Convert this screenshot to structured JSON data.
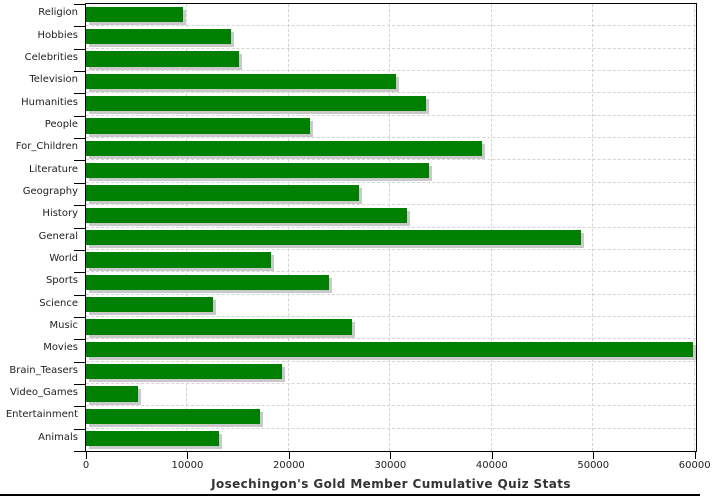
{
  "chart_data": {
    "type": "bar",
    "orientation": "horizontal",
    "title": "Josechingon's Gold Member Cumulative Quiz Stats",
    "categories": [
      "Religion",
      "Hobbies",
      "Celebrities",
      "Television",
      "Humanities",
      "People",
      "For_Children",
      "Literature",
      "Geography",
      "History",
      "General",
      "World",
      "Sports",
      "Science",
      "Music",
      "Movies",
      "Brain_Teasers",
      "Video_Games",
      "Entertainment",
      "Animals"
    ],
    "values": [
      9600,
      14300,
      15100,
      30600,
      33500,
      22100,
      39000,
      33800,
      26900,
      31600,
      48800,
      18200,
      24000,
      12500,
      26200,
      59800,
      19300,
      5100,
      17200,
      13100
    ],
    "xlim": [
      0,
      60000
    ],
    "x_ticks": [
      0,
      10000,
      20000,
      30000,
      40000,
      50000,
      60000
    ],
    "xlabel": "",
    "ylabel": "",
    "legend": "none",
    "grid": "dashed vertical at x ticks and horizontal at category boundaries",
    "colors": {
      "bar": "#008000",
      "bar_shadow": "#c9c9c9",
      "grid": "#d4d4d4",
      "axis": "#000000",
      "title_text": "#333333",
      "tick_text": "#222222",
      "background": "#ffffff"
    }
  }
}
